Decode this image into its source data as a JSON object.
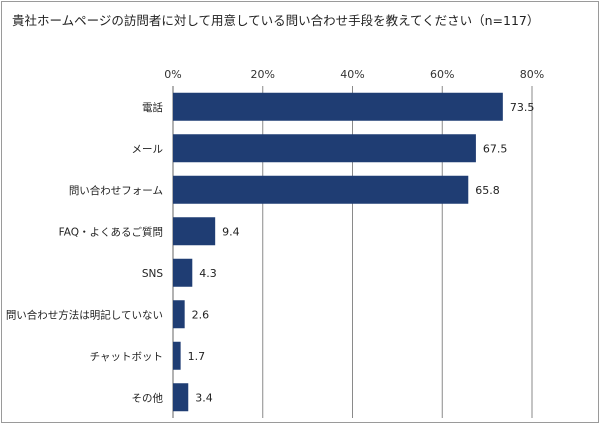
{
  "title": "貴社ホームページの訪問者に対して用意している問い合わせ手段を教えてください（n=117）",
  "chart_data": {
    "type": "bar",
    "orientation": "horizontal",
    "title": "貴社ホームページの訪問者に対して用意している問い合わせ手段を教えてください（n=117）",
    "categories": [
      "電話",
      "メール",
      "問い合わせフォーム",
      "FAQ・よくあるご質問",
      "SNS",
      "問い合わせ方法は明記していない",
      "チャットボット",
      "その他"
    ],
    "values": [
      73.5,
      67.5,
      65.8,
      9.4,
      4.3,
      2.6,
      1.7,
      3.4
    ],
    "value_labels": [
      "73.5",
      "67.5",
      "65.8",
      "9.4",
      "4.3",
      "2.6",
      "1.7",
      "3.4"
    ],
    "xlim": [
      0,
      80
    ],
    "ticks": [
      0,
      20,
      40,
      60,
      80
    ],
    "tick_labels": [
      "0%",
      "20%",
      "40%",
      "60%",
      "80%"
    ],
    "axis_position": "top",
    "grid": true,
    "bar_color": "#1f3d73"
  }
}
